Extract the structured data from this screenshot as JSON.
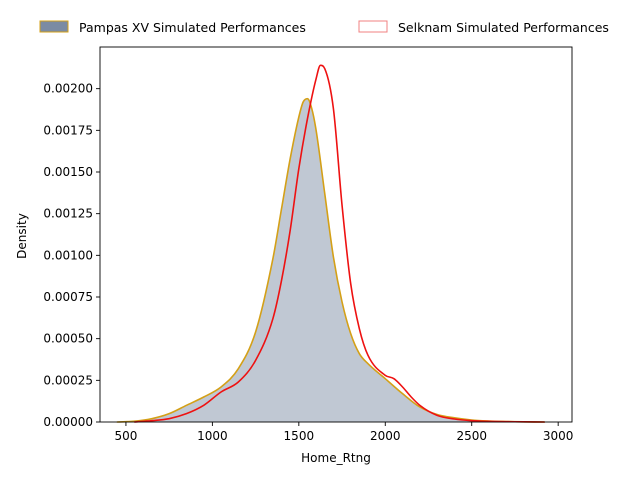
{
  "chart_data": {
    "type": "area",
    "title": "",
    "xlabel": "Home_Rtng",
    "ylabel": "Density",
    "xlim": [
      350,
      3080
    ],
    "ylim": [
      0,
      0.00225
    ],
    "xticks": [
      500,
      1000,
      1500,
      2000,
      2500,
      3000
    ],
    "xtick_labels": [
      "500",
      "1000",
      "1500",
      "2000",
      "2500",
      "3000"
    ],
    "yticks": [
      0,
      0.00025,
      0.0005,
      0.00075,
      0.001,
      0.00125,
      0.0015,
      0.00175,
      0.002
    ],
    "ytick_labels": [
      "0.00000",
      "0.00025",
      "0.00050",
      "0.00075",
      "0.00100",
      "0.00125",
      "0.00150",
      "0.00175",
      "0.00200"
    ],
    "grid": false,
    "legend_position": "top, above plot",
    "series": [
      {
        "name": "Pampas XV Simulated Performances",
        "style": "filled",
        "fill_color": "#7b8ba3",
        "line_color": "#d4a017",
        "x": [
          450,
          550,
          650,
          750,
          850,
          950,
          1050,
          1150,
          1250,
          1350,
          1400,
          1450,
          1500,
          1525,
          1550,
          1575,
          1600,
          1650,
          1700,
          1750,
          1800,
          1850,
          1900,
          2000,
          2100,
          2200,
          2300,
          2400,
          2500,
          2600,
          2700,
          2800,
          2920
        ],
        "y": [
          0.0,
          5e-06,
          2e-05,
          5e-05,
          0.0001,
          0.00015,
          0.00021,
          0.00032,
          0.00054,
          0.00098,
          0.00128,
          0.00158,
          0.00183,
          0.00192,
          0.00194,
          0.00188,
          0.00175,
          0.00137,
          0.00099,
          0.00072,
          0.00053,
          0.00041,
          0.00035,
          0.00026,
          0.00017,
          9e-05,
          4.5e-05,
          2.5e-05,
          1.2e-05,
          6e-06,
          3e-06,
          1e-06,
          0.0
        ]
      },
      {
        "name": "Selknam Simulated Performances",
        "style": "line",
        "line_color": "#ee1111",
        "x": [
          550,
          650,
          750,
          850,
          950,
          1050,
          1150,
          1250,
          1350,
          1400,
          1450,
          1500,
          1550,
          1600,
          1625,
          1650,
          1700,
          1750,
          1800,
          1850,
          1900,
          2000,
          2050,
          2100,
          2150,
          2200,
          2300,
          2400,
          2500,
          2600,
          2700,
          2800,
          2920
        ],
        "y": [
          0.0,
          8e-06,
          2e-05,
          5e-05,
          0.0001,
          0.00018,
          0.00024,
          0.00037,
          0.00062,
          0.00085,
          0.00115,
          0.00152,
          0.00182,
          0.00206,
          0.00214,
          0.00212,
          0.00188,
          0.0013,
          0.00083,
          0.00056,
          0.0004,
          0.00028,
          0.00026,
          0.00021,
          0.00015,
          0.0001,
          4e-05,
          1.8e-05,
          8e-06,
          4e-06,
          2e-06,
          1e-06,
          0.0
        ]
      }
    ]
  }
}
